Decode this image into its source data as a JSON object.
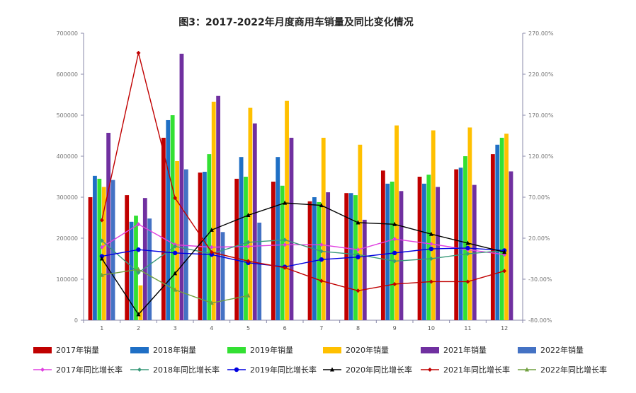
{
  "chart_data": {
    "type": "bar",
    "title": "图3：2017-2022年月度商用车销量及同比变化情况",
    "categories": [
      "1",
      "2",
      "3",
      "4",
      "5",
      "6",
      "7",
      "8",
      "9",
      "10",
      "11",
      "12"
    ],
    "ylim_left": [
      0,
      700000
    ],
    "left_ticks": [
      "0",
      "100000",
      "200000",
      "300000",
      "400000",
      "500000",
      "600000",
      "700000"
    ],
    "ylim_right": [
      -80,
      270
    ],
    "right_ticks": [
      "-80.00%",
      "-30.00%",
      "20.00%",
      "70.00%",
      "120.00%",
      "170.00%",
      "220.00%",
      "270.00%"
    ],
    "grid": false,
    "legend_position": "bottom",
    "bar_series": [
      {
        "name": "2017年销量",
        "color": "#c00000",
        "values": [
          300000,
          305000,
          445000,
          360000,
          345000,
          338000,
          290000,
          310000,
          365000,
          350000,
          368000,
          405000
        ]
      },
      {
        "name": "2018年销量",
        "color": "#1f6fc5",
        "values": [
          352000,
          240000,
          488000,
          362000,
          398000,
          398000,
          300000,
          310000,
          333000,
          333000,
          372000,
          428000
        ]
      },
      {
        "name": "2019年销量",
        "color": "#33e033",
        "values": [
          345000,
          255000,
          500000,
          405000,
          350000,
          328000,
          288000,
          305000,
          338000,
          355000,
          400000,
          445000
        ]
      },
      {
        "name": "2020年销量",
        "color": "#ffc000",
        "values": [
          325000,
          85000,
          388000,
          533000,
          518000,
          535000,
          445000,
          428000,
          475000,
          463000,
          470000,
          455000
        ]
      },
      {
        "name": "2021年销量",
        "color": "#7030a0",
        "values": [
          457000,
          298000,
          650000,
          547000,
          480000,
          445000,
          312000,
          245000,
          315000,
          325000,
          330000,
          363000
        ]
      },
      {
        "name": "2022年销量",
        "color": "#4472c4",
        "values": [
          342000,
          248000,
          368000,
          215000,
          238000,
          null,
          null,
          null,
          null,
          null,
          null,
          null
        ]
      }
    ],
    "line_series": [
      {
        "name": "2017年同比增长率",
        "color": "#e040e0",
        "marker": "diamond",
        "values": [
          9,
          37,
          12,
          9,
          10,
          12,
          12,
          6,
          19,
          13,
          6,
          0
        ]
      },
      {
        "name": "2018年同比增长率",
        "color": "#3a9a7a",
        "marker": "diamond",
        "values": [
          17,
          -22,
          10,
          1,
          15,
          18,
          4,
          0,
          -8,
          -5,
          1,
          5
        ]
      },
      {
        "name": "2019年同比增长率",
        "color": "#0000e0",
        "marker": "circle",
        "values": [
          -2,
          6,
          2,
          0,
          -10,
          -15,
          -6,
          -3,
          2,
          7,
          8,
          5
        ]
      },
      {
        "name": "2020年同比增长率",
        "color": "#000000",
        "marker": "triangle",
        "values": [
          -5,
          -73,
          -23,
          30,
          48,
          63,
          60,
          39,
          37,
          25,
          14,
          3
        ]
      },
      {
        "name": "2021年同比增长率",
        "color": "#c00000",
        "marker": "diamond",
        "values": [
          42,
          246,
          69,
          3,
          -8,
          -16,
          -32,
          -44,
          -36,
          -33,
          -33,
          -20
        ]
      },
      {
        "name": "2022年同比增长率",
        "color": "#70a040",
        "marker": "triangle",
        "values": [
          -25,
          -18,
          -43,
          -59,
          -50,
          null,
          null,
          null,
          null,
          null,
          null,
          null
        ]
      }
    ]
  }
}
